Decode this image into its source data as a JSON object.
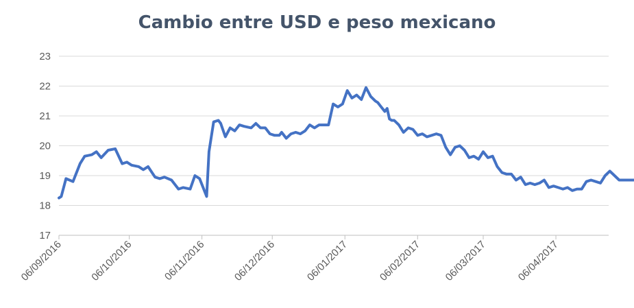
{
  "chart_data": {
    "type": "line",
    "title": "Cambio entre USD e peso mexicano",
    "xlabel": "",
    "ylabel": "",
    "ylim": [
      17,
      23
    ],
    "yticks": [
      17,
      18,
      19,
      20,
      21,
      22,
      23
    ],
    "x_tick_labels": [
      "06/09/2016",
      "06/10/2016",
      "06/11/2016",
      "06/12/2016",
      "06/01/2017",
      "06/02/2017",
      "06/03/2017",
      "06/04/2017"
    ],
    "grid": true,
    "legend": "none",
    "line_color": "#4472c4",
    "series": [
      {
        "x": [
          "2016-09-06",
          "2016-09-07",
          "2016-09-09",
          "2016-09-12",
          "2016-09-15",
          "2016-09-17",
          "2016-09-20",
          "2016-09-22",
          "2016-09-24",
          "2016-09-27",
          "2016-09-30",
          "2016-10-03",
          "2016-10-05",
          "2016-10-07",
          "2016-10-10",
          "2016-10-12",
          "2016-10-14",
          "2016-10-17",
          "2016-10-19",
          "2016-10-21",
          "2016-10-24",
          "2016-10-27",
          "2016-10-29",
          "2016-11-01",
          "2016-11-03",
          "2016-11-05",
          "2016-11-08",
          "2016-11-09",
          "2016-11-10",
          "2016-11-11",
          "2016-11-13",
          "2016-11-14",
          "2016-11-16",
          "2016-11-18",
          "2016-11-20",
          "2016-11-22",
          "2016-11-24",
          "2016-11-27",
          "2016-11-29",
          "2016-12-01",
          "2016-12-03",
          "2016-12-05",
          "2016-12-07",
          "2016-12-09",
          "2016-12-10",
          "2016-12-12",
          "2016-12-14",
          "2016-12-16",
          "2016-12-18",
          "2016-12-20",
          "2016-12-22",
          "2016-12-24",
          "2016-12-26",
          "2016-12-28",
          "2016-12-30",
          "2017-01-01",
          "2017-01-03",
          "2017-01-05",
          "2017-01-07",
          "2017-01-09",
          "2017-01-11",
          "2017-01-13",
          "2017-01-15",
          "2017-01-17",
          "2017-01-19",
          "2017-01-20",
          "2017-01-21",
          "2017-01-23",
          "2017-01-24",
          "2017-01-25",
          "2017-01-26",
          "2017-01-27",
          "2017-01-29",
          "2017-01-31",
          "2017-02-02",
          "2017-02-04",
          "2017-02-06",
          "2017-02-08",
          "2017-02-10",
          "2017-02-12",
          "2017-02-14",
          "2017-02-16",
          "2017-02-18",
          "2017-02-20",
          "2017-02-22",
          "2017-02-24",
          "2017-02-26",
          "2017-02-28",
          "2017-03-02",
          "2017-03-04",
          "2017-03-06",
          "2017-03-08",
          "2017-03-10",
          "2017-03-12",
          "2017-03-14",
          "2017-03-16",
          "2017-03-18",
          "2017-03-20",
          "2017-03-22",
          "2017-03-24",
          "2017-03-26",
          "2017-03-28",
          "2017-03-30",
          "2017-04-01",
          "2017-04-03",
          "2017-04-05",
          "2017-04-07",
          "2017-04-09",
          "2017-04-11",
          "2017-04-13",
          "2017-04-15",
          "2017-04-17",
          "2017-04-19",
          "2017-04-21",
          "2017-04-23",
          "2017-04-25",
          "2017-04-27",
          "2017-04-29",
          "2017-05-01",
          "2017-05-03",
          "2017-05-05",
          "2017-05-07",
          "2017-05-09",
          "2017-05-11"
        ],
        "values": [
          18.25,
          18.3,
          18.9,
          18.8,
          19.4,
          19.65,
          19.7,
          19.8,
          19.6,
          19.85,
          19.9,
          19.4,
          19.45,
          19.35,
          19.3,
          19.2,
          19.3,
          18.95,
          18.9,
          18.95,
          18.85,
          18.55,
          18.6,
          18.55,
          19.0,
          18.9,
          18.3,
          19.8,
          20.3,
          20.8,
          20.85,
          20.75,
          20.3,
          20.6,
          20.5,
          20.7,
          20.65,
          20.6,
          20.75,
          20.6,
          20.6,
          20.4,
          20.35,
          20.35,
          20.45,
          20.25,
          20.4,
          20.45,
          20.4,
          20.5,
          20.7,
          20.6,
          20.7,
          20.7,
          20.7,
          21.4,
          21.3,
          21.4,
          21.85,
          21.6,
          21.7,
          21.55,
          21.95,
          21.65,
          21.5,
          21.45,
          21.35,
          21.15,
          21.25,
          20.9,
          20.85,
          20.85,
          20.7,
          20.45,
          20.6,
          20.55,
          20.35,
          20.4,
          20.3,
          20.35,
          20.4,
          20.35,
          19.95,
          19.7,
          19.95,
          20.0,
          19.85,
          19.6,
          19.65,
          19.55,
          19.8,
          19.6,
          19.65,
          19.3,
          19.1,
          19.05,
          19.05,
          18.85,
          18.95,
          18.7,
          18.75,
          18.7,
          18.75,
          18.85,
          18.6,
          18.65,
          18.6,
          18.55,
          18.6,
          18.5,
          18.55,
          18.55,
          18.8,
          18.85,
          18.8,
          18.75,
          19.0,
          19.15,
          19.0,
          18.85,
          18.85,
          18.85,
          18.85,
          18.85
        ]
      }
    ]
  }
}
